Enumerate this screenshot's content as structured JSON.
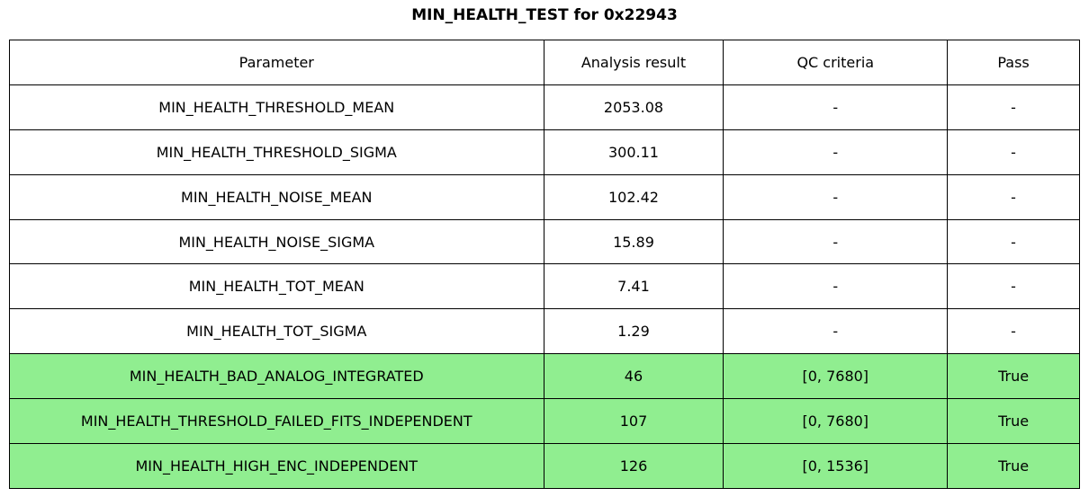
{
  "chart_data": {
    "type": "table",
    "title": "MIN_HEALTH_TEST for 0x22943",
    "columns": [
      "Parameter",
      "Analysis result",
      "QC criteria",
      "Pass"
    ],
    "rows": [
      [
        "MIN_HEALTH_THRESHOLD_MEAN",
        "2053.08",
        "-",
        "-"
      ],
      [
        "MIN_HEALTH_THRESHOLD_SIGMA",
        "300.11",
        "-",
        "-"
      ],
      [
        "MIN_HEALTH_NOISE_MEAN",
        "102.42",
        "-",
        "-"
      ],
      [
        "MIN_HEALTH_NOISE_SIGMA",
        "15.89",
        "-",
        "-"
      ],
      [
        "MIN_HEALTH_TOT_MEAN",
        "7.41",
        "-",
        "-"
      ],
      [
        "MIN_HEALTH_TOT_SIGMA",
        "1.29",
        "-",
        "-"
      ],
      [
        "MIN_HEALTH_BAD_ANALOG_INTEGRATED",
        "46",
        "[0, 7680]",
        "True"
      ],
      [
        "MIN_HEALTH_THRESHOLD_FAILED_FITS_INDEPENDENT",
        "107",
        "[0, 7680]",
        "True"
      ],
      [
        "MIN_HEALTH_HIGH_ENC_INDEPENDENT",
        "126",
        "[0, 1536]",
        "True"
      ]
    ],
    "highlighted_rows": [
      6,
      7,
      8
    ],
    "legend_position": "none",
    "grid": "full-borders"
  },
  "colors": {
    "pass_row_bg": "#90EE90",
    "border": "#000000",
    "text": "#000000",
    "background": "#FFFFFF"
  }
}
